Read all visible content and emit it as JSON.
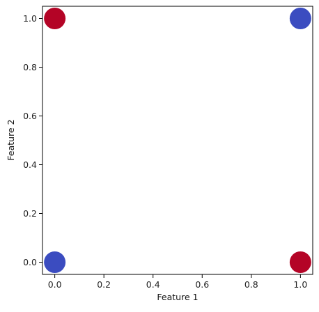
{
  "chart_data": {
    "type": "scatter",
    "title": "",
    "xlabel": "Feature 1",
    "ylabel": "Feature 2",
    "xlim": [
      -0.05,
      1.05
    ],
    "ylim": [
      -0.05,
      1.05
    ],
    "xticks": [
      0.0,
      0.2,
      0.4,
      0.6,
      0.8,
      1.0
    ],
    "yticks": [
      0.0,
      0.2,
      0.4,
      0.6,
      0.8,
      1.0
    ],
    "xtick_labels": [
      "0.0",
      "0.2",
      "0.4",
      "0.6",
      "0.8",
      "1.0"
    ],
    "ytick_labels": [
      "0.0",
      "0.2",
      "0.4",
      "0.6",
      "0.8",
      "1.0"
    ],
    "grid": false,
    "legend": "none",
    "class_colors": {
      "class_0": "#3b4cc0",
      "class_1": "#b40426"
    },
    "points": [
      {
        "x": 0,
        "y": 0,
        "class": 0,
        "color": "#3b4cc0"
      },
      {
        "x": 0,
        "y": 1,
        "class": 1,
        "color": "#b40426"
      },
      {
        "x": 1,
        "y": 0,
        "class": 1,
        "color": "#b40426"
      },
      {
        "x": 1,
        "y": 1,
        "class": 0,
        "color": "#3b4cc0"
      }
    ]
  }
}
